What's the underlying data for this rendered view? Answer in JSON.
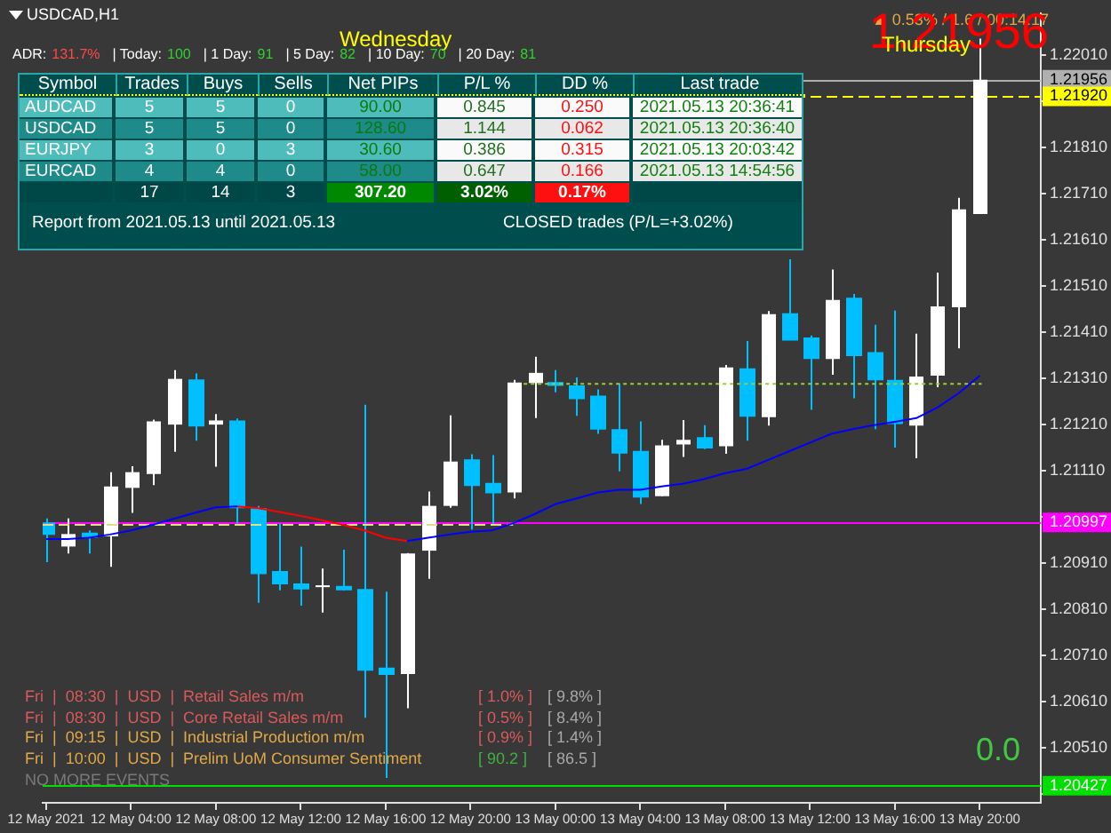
{
  "chart_data": [
    {
      "type": "candlestick",
      "title": "USDCAD,H1",
      "x": [
        "2021-05-12T00:00",
        "2021-05-12T01:00",
        "2021-05-12T02:00",
        "2021-05-12T03:00",
        "2021-05-12T04:00",
        "2021-05-12T05:00",
        "2021-05-12T06:00",
        "2021-05-12T07:00",
        "2021-05-12T08:00",
        "2021-05-12T09:00",
        "2021-05-12T10:00",
        "2021-05-12T11:00",
        "2021-05-12T12:00",
        "2021-05-12T13:00",
        "2021-05-12T14:00",
        "2021-05-12T15:00",
        "2021-05-12T16:00",
        "2021-05-12T17:00",
        "2021-05-12T18:00",
        "2021-05-12T19:00",
        "2021-05-12T20:00",
        "2021-05-12T21:00",
        "2021-05-12T22:00",
        "2021-05-12T23:00",
        "2021-05-13T00:00",
        "2021-05-13T01:00",
        "2021-05-13T02:00",
        "2021-05-13T03:00",
        "2021-05-13T04:00",
        "2021-05-13T05:00",
        "2021-05-13T06:00",
        "2021-05-13T07:00",
        "2021-05-13T08:00",
        "2021-05-13T09:00",
        "2021-05-13T10:00",
        "2021-05-13T11:00",
        "2021-05-13T12:00",
        "2021-05-13T13:00",
        "2021-05-13T14:00",
        "2021-05-13T15:00",
        "2021-05-13T16:00",
        "2021-05-13T17:00",
        "2021-05-13T18:00",
        "2021-05-13T19:00",
        "2021-05-13T20:00"
      ],
      "ohlc": [
        [
          1.20995,
          1.21006,
          1.20911,
          1.20972
        ],
        [
          1.20945,
          1.21006,
          1.2093,
          1.20972
        ],
        [
          1.20973,
          1.2098,
          1.2093,
          1.20966
        ],
        [
          1.20967,
          1.21106,
          1.20901,
          1.21075
        ],
        [
          1.21072,
          1.21119,
          1.21018,
          1.21106
        ],
        [
          1.21102,
          1.2122,
          1.21078,
          1.21216
        ],
        [
          1.21209,
          1.21327,
          1.2115,
          1.21308
        ],
        [
          1.21305,
          1.2132,
          1.21174,
          1.21207
        ],
        [
          1.21209,
          1.21232,
          1.21118,
          1.21218
        ],
        [
          1.21216,
          1.21222,
          1.20995,
          1.2103
        ],
        [
          1.21026,
          1.21033,
          1.20823,
          1.20887
        ],
        [
          1.2089,
          1.20995,
          1.2085,
          1.20865
        ],
        [
          1.20863,
          1.20945,
          1.20817,
          1.20854
        ],
        [
          1.20857,
          1.20897,
          1.20802,
          1.20861
        ],
        [
          1.20858,
          1.20938,
          1.2085,
          1.20852
        ],
        [
          1.20851,
          1.21252,
          1.20574,
          1.20678
        ],
        [
          1.20681,
          1.20847,
          1.20444,
          1.20669
        ],
        [
          1.20669,
          1.20931,
          1.20595,
          1.2093
        ],
        [
          1.20936,
          1.21064,
          1.20875,
          1.21033
        ],
        [
          1.21033,
          1.21229,
          1.21029,
          1.21129
        ],
        [
          1.21132,
          1.21145,
          1.20982,
          1.21078
        ],
        [
          1.21081,
          1.21143,
          1.20994,
          1.21062
        ],
        [
          1.21062,
          1.21306,
          1.21049,
          1.213
        ],
        [
          1.21299,
          1.21356,
          1.21223,
          1.21321
        ],
        [
          1.21299,
          1.21327,
          1.21279,
          1.21295
        ],
        [
          1.21292,
          1.21311,
          1.21228,
          1.21266
        ],
        [
          1.2127,
          1.21285,
          1.21189,
          1.212
        ],
        [
          1.21197,
          1.21298,
          1.21108,
          1.21148
        ],
        [
          1.2115,
          1.21216,
          1.21037,
          1.21053
        ],
        [
          1.21054,
          1.21176,
          1.21054,
          1.21164
        ],
        [
          1.21166,
          1.21219,
          1.21139,
          1.21176
        ],
        [
          1.2118,
          1.21208,
          1.21156,
          1.21159
        ],
        [
          1.21162,
          1.21338,
          1.21146,
          1.21333
        ],
        [
          1.21329,
          1.2139,
          1.21174,
          1.21228
        ],
        [
          1.21225,
          1.21455,
          1.21207,
          1.21448
        ],
        [
          1.21448,
          1.21567,
          1.21392,
          1.21393
        ],
        [
          1.21396,
          1.21402,
          1.21241,
          1.21353
        ],
        [
          1.21351,
          1.21545,
          1.21317,
          1.21479
        ],
        [
          1.21482,
          1.21492,
          1.21266,
          1.21359
        ],
        [
          1.21364,
          1.21425,
          1.21199,
          1.21307
        ],
        [
          1.21304,
          1.21456,
          1.21159,
          1.21212
        ],
        [
          1.21207,
          1.21406,
          1.21136,
          1.21313
        ],
        [
          1.21315,
          1.21538,
          1.2129,
          1.21465
        ],
        [
          1.21463,
          1.217,
          1.21374,
          1.21675
        ],
        [
          1.21665,
          1.22045,
          1.21665,
          1.21956
        ]
      ],
      "colors": [
        "#00bfff",
        "#ffffff",
        "#00bfff",
        "#ffffff",
        "#ffffff",
        "#ffffff",
        "#ffffff",
        "#00bfff",
        "#ffffff",
        "#00bfff",
        "#00bfff",
        "#00bfff",
        "#00bfff",
        "#ffffff",
        "#00bfff",
        "#00bfff",
        "#00bfff",
        "#ffffff",
        "#ffffff",
        "#ffffff",
        "#00bfff",
        "#00bfff",
        "#ffffff",
        "#ffffff",
        "#00bfff",
        "#00bfff",
        "#00bfff",
        "#00bfff",
        "#00bfff",
        "#ffffff",
        "#ffffff",
        "#00bfff",
        "#ffffff",
        "#00bfff",
        "#ffffff",
        "#00bfff",
        "#00bfff",
        "#ffffff",
        "#00bfff",
        "#00bfff",
        "#00bfff",
        "#ffffff",
        "#ffffff",
        "#ffffff",
        "#ffffff"
      ],
      "series": [
        {
          "type": "line",
          "color": "#0000ff",
          "values": [
            1.20961,
            1.20961,
            1.20964,
            1.20971,
            1.2098,
            1.20992,
            1.21005,
            1.21018,
            1.2103,
            1.21032,
            null,
            null,
            null,
            null,
            null,
            null,
            null,
            1.20957,
            1.20964,
            1.20971,
            1.20977,
            1.2098,
            1.20995,
            1.21015,
            1.21037,
            1.21049,
            1.21062,
            1.21068,
            1.21068,
            1.21075,
            1.21081,
            1.21091,
            1.21104,
            1.21113,
            1.21132,
            1.21151,
            1.2117,
            1.21189,
            1.21199,
            1.21208,
            1.21215,
            1.21223,
            1.21246,
            1.21277,
            1.21315
          ]
        },
        {
          "type": "line",
          "color": "#ff0000",
          "x": [
            "2021-05-12T09:00",
            "2021-05-12T10:00",
            "2021-05-12T11:00",
            "2021-05-12T12:00",
            "2021-05-12T13:00",
            "2021-05-12T14:00",
            "2021-05-12T15:00",
            "2021-05-12T16:00",
            "2021-05-12T17:00"
          ],
          "values": [
            1.21032,
            1.21028,
            1.2102,
            1.21011,
            1.21002,
            1.20992,
            1.2098,
            1.20964,
            1.20957
          ]
        },
        {
          "type": "line",
          "x": [
            "2021-05-11T23:50",
            "2021-05-12T22:00"
          ],
          "values": [
            1.20992,
            1.20992
          ],
          "color": "#e0e080",
          "line_style": "dashed"
        },
        {
          "type": "line",
          "x": [
            "2021-05-12T22:30",
            "2021-05-13T20:05"
          ],
          "values": [
            1.21297,
            1.21297
          ],
          "color": "#9acd32",
          "line_style": "dotted"
        }
      ],
      "xlim": [
        "2021-05-11T23:50",
        "2021-05-13T22:52"
      ],
      "xticks": [
        {
          "value": "2021-05-12T00:00",
          "label": "12 May 2021"
        },
        {
          "value": "2021-05-12T04:00",
          "label": "12 May 04:00"
        },
        {
          "value": "2021-05-12T08:00",
          "label": "12 May 08:00"
        },
        {
          "value": "2021-05-12T12:00",
          "label": "12 May 12:00"
        },
        {
          "value": "2021-05-12T16:00",
          "label": "12 May 16:00"
        },
        {
          "value": "2021-05-12T20:00",
          "label": "12 May 20:00"
        },
        {
          "value": "2021-05-13T00:00",
          "label": "13 May 00:00"
        },
        {
          "value": "2021-05-13T04:00",
          "label": "13 May 04:00"
        },
        {
          "value": "2021-05-13T08:00",
          "label": "13 May 08:00"
        },
        {
          "value": "2021-05-13T12:00",
          "label": "13 May 12:00"
        },
        {
          "value": "2021-05-13T16:00",
          "label": "13 May 16:00"
        },
        {
          "value": "2021-05-13T20:00",
          "label": "13 May 20:00"
        }
      ],
      "ylim": [
        1.2039,
        1.221
      ],
      "yticks": [
        {
          "value": 1.2041,
          "label": null
        },
        {
          "value": 1.2051,
          "label": "1.20510"
        },
        {
          "value": 1.2061,
          "label": "1.20610"
        },
        {
          "value": 1.2071,
          "label": "1.20710"
        },
        {
          "value": 1.2081,
          "label": "1.20810"
        },
        {
          "value": 1.2091,
          "label": "1.20910"
        },
        {
          "value": 1.2101,
          "label": null
        },
        {
          "value": 1.2111,
          "label": "1.21110"
        },
        {
          "value": 1.2121,
          "label": "1.21210"
        },
        {
          "value": 1.2131,
          "label": "1.21310"
        },
        {
          "value": 1.2141,
          "label": "1.21410"
        },
        {
          "value": 1.2151,
          "label": "1.21510"
        },
        {
          "value": 1.2161,
          "label": "1.21610"
        },
        {
          "value": 1.2171,
          "label": "1.21710"
        },
        {
          "value": 1.2181,
          "label": "1.21810"
        },
        {
          "value": 1.2191,
          "label": null
        },
        {
          "value": 1.2201,
          "label": "1.22010"
        }
      ],
      "ref_lines": [
        {
          "axis": "y",
          "value": 1.21956,
          "label": "1.21956",
          "color": "#b0b0b0"
        },
        {
          "axis": "y",
          "value": 1.2192,
          "label": "1.21920",
          "color": "#ffff00",
          "line_style": "dashed"
        },
        {
          "axis": "y",
          "value": 1.20997,
          "label": "1.20997",
          "color": "#ff00ff"
        },
        {
          "axis": "y",
          "value": 1.20427,
          "label": "1.20427",
          "color": "#00e000"
        }
      ],
      "annotations": [
        "Wednesday",
        "Thursday",
        "▲ 0.53% / 1.6 / 00:14:17",
        "1.21956",
        "ADR:",
        "131.7%",
        "| Today:",
        "100",
        "| 1 Day:",
        "91",
        "| 5 Day:",
        "82",
        "| 10 Day:",
        "70",
        "| 20 Day:",
        "81",
        "Fri  |  08:30  |  USD  |  Retail Sales m/m",
        "[ 1.0% ]",
        "[ 9.8% ]",
        "Fri  |  08:30  |  USD  |  Core Retail Sales m/m",
        "[ 0.5% ]",
        "[ 8.4% ]",
        "Fri  |  09:15  |  USD  |  Industrial Production m/m",
        "[ 0.9% ]",
        "[ 1.4% ]",
        "Fri  |  10:00  |  USD  |  Prelim UoM Consumer Sentiment",
        "[ 90.2 ]",
        "[ 86.5 ]",
        "NO MORE EVENTS",
        "0.0"
      ]
    },
    {
      "type": "other",
      "categories": [
        "Symbol",
        "Trades",
        "Buys",
        "Sells",
        "Net PIPs",
        "P/L %",
        "DD %",
        "Last trade"
      ],
      "cell_labels": [
        [
          "AUDCAD",
          "5",
          "5",
          "0",
          "90.00",
          "0.845",
          "0.250",
          "2021.05.13 20:36:41"
        ],
        [
          "USDCAD",
          "5",
          "5",
          "0",
          "128.60",
          "1.144",
          "0.062",
          "2021.05.13 20:36:40"
        ],
        [
          "EURJPY",
          "3",
          "0",
          "3",
          "30.60",
          "0.386",
          "0.315",
          "2021.05.13 20:03:42"
        ],
        [
          "EURCAD",
          "4",
          "4",
          "0",
          "58.00",
          "0.647",
          "0.166",
          "2021.05.13 14:54:56"
        ],
        [
          null,
          "17",
          "14",
          "3",
          "307.20",
          "3.02%",
          "0.17%",
          null
        ]
      ],
      "annotations": [
        "Report from 2021.05.13 until 2021.05.13",
        "CLOSED trades (P/L=+3.02%)"
      ]
    }
  ]
}
